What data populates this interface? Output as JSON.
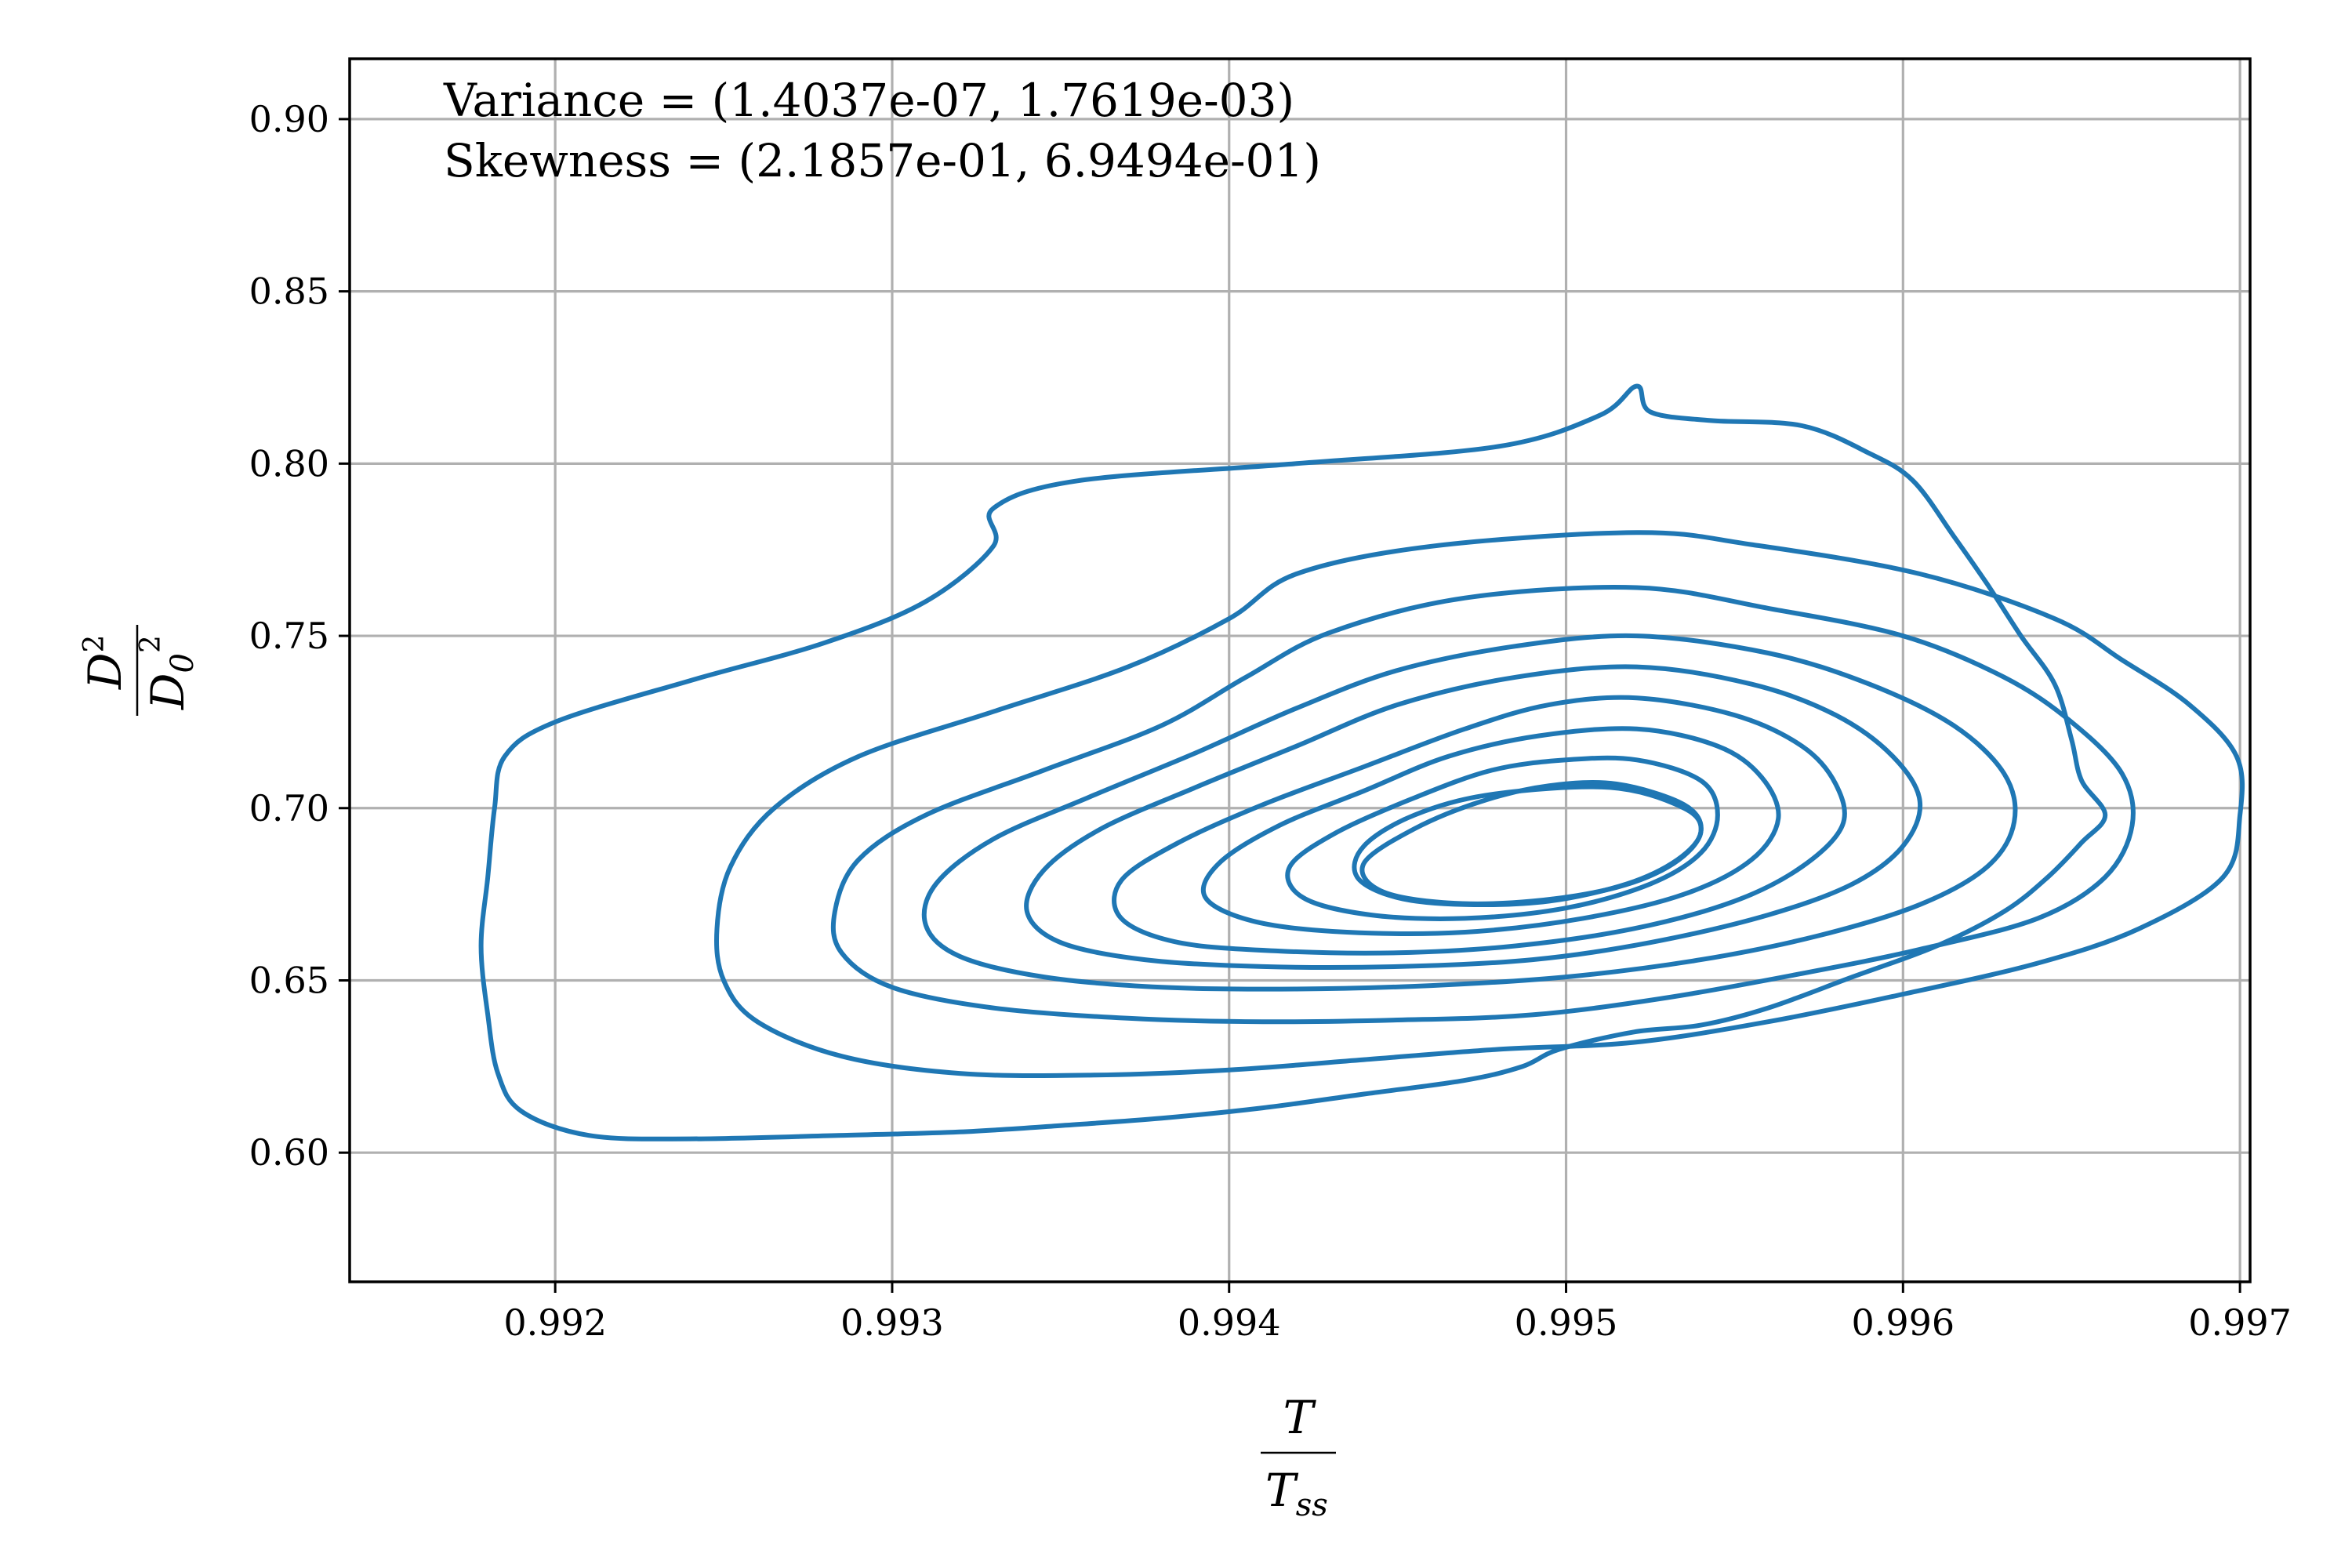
{
  "chart_data": {
    "type": "contour",
    "title": "",
    "xlabel": {
      "numerator": "T",
      "denominator": "T",
      "denominator_sub": "ss"
    },
    "ylabel": {
      "numerator": "D",
      "numerator_sup": "2",
      "denominator": "D",
      "denominator_sub": "0",
      "denominator_sup": "2"
    },
    "xlim": [
      0.99139,
      0.99703
    ],
    "ylim": [
      0.5625,
      0.9175
    ],
    "xticks": [
      "0.992",
      "0.993",
      "0.994",
      "0.995",
      "0.996",
      "0.997"
    ],
    "yticks": [
      "0.60",
      "0.65",
      "0.70",
      "0.75",
      "0.80",
      "0.85",
      "0.90"
    ],
    "grid": true,
    "line_color": "#1f77b4",
    "annotations": [
      "Variance = (1.4037e-07, 1.7619e-03)",
      "Skewness = (2.1857e-01, 6.9494e-01)"
    ],
    "contour_levels": [
      {
        "level": 1,
        "points": [
          [
            0.99521,
            0.8225
          ],
          [
            0.99525,
            0.815
          ],
          [
            0.99543,
            0.8125
          ],
          [
            0.9957,
            0.811
          ],
          [
            0.9959,
            0.803
          ],
          [
            0.99603,
            0.795
          ],
          [
            0.99615,
            0.779
          ],
          [
            0.99625,
            0.765
          ],
          [
            0.99635,
            0.75
          ],
          [
            0.99645,
            0.736
          ],
          [
            0.9965,
            0.72
          ],
          [
            0.99653,
            0.708
          ],
          [
            0.9966,
            0.698
          ],
          [
            0.99653,
            0.69
          ],
          [
            0.99643,
            0.68
          ],
          [
            0.9963,
            0.67
          ],
          [
            0.9961,
            0.66
          ],
          [
            0.99585,
            0.651
          ],
          [
            0.9956,
            0.642
          ],
          [
            0.9954,
            0.637
          ],
          [
            0.9952,
            0.635
          ],
          [
            0.99498,
            0.63
          ],
          [
            0.99487,
            0.625
          ],
          [
            0.9947,
            0.621
          ],
          [
            0.9944,
            0.617
          ],
          [
            0.9941,
            0.613
          ],
          [
            0.9938,
            0.61
          ],
          [
            0.99352,
            0.608
          ],
          [
            0.9932,
            0.606
          ],
          [
            0.99284,
            0.605
          ],
          [
            0.9924,
            0.604
          ],
          [
            0.9921,
            0.605
          ],
          [
            0.9919,
            0.612
          ],
          [
            0.99183,
            0.623
          ],
          [
            0.9918,
            0.64
          ],
          [
            0.99178,
            0.66
          ],
          [
            0.9918,
            0.68
          ],
          [
            0.99182,
            0.7
          ],
          [
            0.99185,
            0.715
          ],
          [
            0.992,
            0.725
          ],
          [
            0.9924,
            0.737
          ],
          [
            0.9928,
            0.748
          ],
          [
            0.9931,
            0.76
          ],
          [
            0.9933,
            0.776
          ],
          [
            0.9933,
            0.787
          ],
          [
            0.99355,
            0.795
          ],
          [
            0.9942,
            0.8
          ],
          [
            0.9948,
            0.805
          ],
          [
            0.9951,
            0.814
          ],
          [
            0.99521,
            0.8225
          ]
        ]
      },
      {
        "level": 2,
        "points": [
          [
            0.99521,
            0.78
          ],
          [
            0.99555,
            0.7765
          ],
          [
            0.99605,
            0.768
          ],
          [
            0.99645,
            0.755
          ],
          [
            0.99665,
            0.743
          ],
          [
            0.99685,
            0.73
          ],
          [
            0.99699,
            0.715
          ],
          [
            0.997,
            0.698
          ],
          [
            0.99695,
            0.68
          ],
          [
            0.9967,
            0.665
          ],
          [
            0.9964,
            0.655
          ],
          [
            0.996,
            0.646
          ],
          [
            0.9956,
            0.638
          ],
          [
            0.9952,
            0.632
          ],
          [
            0.9948,
            0.63
          ],
          [
            0.9944,
            0.627
          ],
          [
            0.994,
            0.624
          ],
          [
            0.9936,
            0.6225
          ],
          [
            0.9932,
            0.623
          ],
          [
            0.99285,
            0.628
          ],
          [
            0.9926,
            0.638
          ],
          [
            0.9925,
            0.65
          ],
          [
            0.99248,
            0.665
          ],
          [
            0.99252,
            0.683
          ],
          [
            0.99265,
            0.7
          ],
          [
            0.9929,
            0.715
          ],
          [
            0.9933,
            0.728
          ],
          [
            0.9937,
            0.741
          ],
          [
            0.994,
            0.755
          ],
          [
            0.9942,
            0.768
          ],
          [
            0.9946,
            0.776
          ],
          [
            0.99521,
            0.78
          ]
        ]
      },
      {
        "level": 3,
        "points": [
          [
            0.99521,
            0.764
          ],
          [
            0.9956,
            0.758
          ],
          [
            0.996,
            0.75
          ],
          [
            0.9963,
            0.738
          ],
          [
            0.9965,
            0.725
          ],
          [
            0.99665,
            0.71
          ],
          [
            0.99668,
            0.695
          ],
          [
            0.9966,
            0.68
          ],
          [
            0.9964,
            0.668
          ],
          [
            0.99605,
            0.659
          ],
          [
            0.9957,
            0.652
          ],
          [
            0.9953,
            0.645
          ],
          [
            0.9949,
            0.64
          ],
          [
            0.9945,
            0.6385
          ],
          [
            0.9941,
            0.638
          ],
          [
            0.9937,
            0.639
          ],
          [
            0.9933,
            0.642
          ],
          [
            0.993,
            0.648
          ],
          [
            0.99285,
            0.658
          ],
          [
            0.99283,
            0.67
          ],
          [
            0.9929,
            0.685
          ],
          [
            0.9931,
            0.698
          ],
          [
            0.99345,
            0.711
          ],
          [
            0.9938,
            0.724
          ],
          [
            0.99405,
            0.738
          ],
          [
            0.9943,
            0.751
          ],
          [
            0.9947,
            0.761
          ],
          [
            0.99521,
            0.764
          ]
        ]
      },
      {
        "level": 4,
        "points": [
          [
            0.99521,
            0.75
          ],
          [
            0.9956,
            0.745
          ],
          [
            0.9959,
            0.736
          ],
          [
            0.99615,
            0.724
          ],
          [
            0.9963,
            0.71
          ],
          [
            0.99633,
            0.696
          ],
          [
            0.99625,
            0.683
          ],
          [
            0.99605,
            0.672
          ],
          [
            0.99575,
            0.663
          ],
          [
            0.9954,
            0.656
          ],
          [
            0.995,
            0.651
          ],
          [
            0.9946,
            0.6485
          ],
          [
            0.9942,
            0.6475
          ],
          [
            0.9938,
            0.648
          ],
          [
            0.99345,
            0.651
          ],
          [
            0.9932,
            0.657
          ],
          [
            0.9931,
            0.666
          ],
          [
            0.99313,
            0.678
          ],
          [
            0.9933,
            0.691
          ],
          [
            0.99358,
            0.703
          ],
          [
            0.9939,
            0.716
          ],
          [
            0.9942,
            0.729
          ],
          [
            0.9945,
            0.74
          ],
          [
            0.99485,
            0.747
          ],
          [
            0.99521,
            0.75
          ]
        ]
      },
      {
        "level": 5,
        "points": [
          [
            0.99521,
            0.741
          ],
          [
            0.99555,
            0.736
          ],
          [
            0.9958,
            0.727
          ],
          [
            0.99597,
            0.715
          ],
          [
            0.99605,
            0.702
          ],
          [
            0.996,
            0.689
          ],
          [
            0.99585,
            0.678
          ],
          [
            0.9956,
            0.669
          ],
          [
            0.99525,
            0.661
          ],
          [
            0.9949,
            0.656
          ],
          [
            0.9945,
            0.654
          ],
          [
            0.9941,
            0.654
          ],
          [
            0.99375,
            0.656
          ],
          [
            0.9935,
            0.661
          ],
          [
            0.9934,
            0.67
          ],
          [
            0.99345,
            0.682
          ],
          [
            0.99362,
            0.694
          ],
          [
            0.9939,
            0.706
          ],
          [
            0.9942,
            0.718
          ],
          [
            0.9945,
            0.73
          ],
          [
            0.99485,
            0.738
          ],
          [
            0.99521,
            0.741
          ]
        ]
      },
      {
        "level": 6,
        "points": [
          [
            0.99521,
            0.732
          ],
          [
            0.9955,
            0.727
          ],
          [
            0.9957,
            0.718
          ],
          [
            0.9958,
            0.707
          ],
          [
            0.99582,
            0.695
          ],
          [
            0.9957,
            0.683
          ],
          [
            0.9955,
            0.673
          ],
          [
            0.9952,
            0.665
          ],
          [
            0.99485,
            0.66
          ],
          [
            0.9945,
            0.658
          ],
          [
            0.99415,
            0.6585
          ],
          [
            0.99385,
            0.661
          ],
          [
            0.99368,
            0.668
          ],
          [
            0.99368,
            0.679
          ],
          [
            0.99385,
            0.69
          ],
          [
            0.9941,
            0.701
          ],
          [
            0.9944,
            0.712
          ],
          [
            0.9947,
            0.723
          ],
          [
            0.99495,
            0.73
          ],
          [
            0.99521,
            0.732
          ]
        ]
      },
      {
        "level": 7,
        "points": [
          [
            0.99521,
            0.723
          ],
          [
            0.99545,
            0.718
          ],
          [
            0.99558,
            0.709
          ],
          [
            0.99563,
            0.697
          ],
          [
            0.99555,
            0.685
          ],
          [
            0.99535,
            0.675
          ],
          [
            0.99505,
            0.668
          ],
          [
            0.9947,
            0.664
          ],
          [
            0.99435,
            0.664
          ],
          [
            0.99408,
            0.667
          ],
          [
            0.99393,
            0.674
          ],
          [
            0.99397,
            0.684
          ],
          [
            0.99415,
            0.695
          ],
          [
            0.9944,
            0.705
          ],
          [
            0.99465,
            0.715
          ],
          [
            0.99492,
            0.721
          ],
          [
            0.99521,
            0.723
          ]
        ]
      },
      {
        "level": 8,
        "points": [
          [
            0.99521,
            0.714
          ],
          [
            0.9954,
            0.708
          ],
          [
            0.99545,
            0.698
          ],
          [
            0.9954,
            0.687
          ],
          [
            0.99525,
            0.678
          ],
          [
            0.995,
            0.671
          ],
          [
            0.9947,
            0.668
          ],
          [
            0.99442,
            0.669
          ],
          [
            0.99422,
            0.674
          ],
          [
            0.99418,
            0.683
          ],
          [
            0.99432,
            0.693
          ],
          [
            0.99455,
            0.703
          ],
          [
            0.99478,
            0.711
          ],
          [
            0.995,
            0.714
          ],
          [
            0.99521,
            0.714
          ]
        ]
      },
      {
        "level": 9,
        "points": [
          [
            0.99515,
            0.707
          ],
          [
            0.99535,
            0.701
          ],
          [
            0.9954,
            0.693
          ],
          [
            0.99532,
            0.684
          ],
          [
            0.99515,
            0.677
          ],
          [
            0.9949,
            0.673
          ],
          [
            0.99465,
            0.6725
          ],
          [
            0.99445,
            0.676
          ],
          [
            0.9944,
            0.684
          ],
          [
            0.99455,
            0.694
          ],
          [
            0.99475,
            0.702
          ],
          [
            0.99495,
            0.7065
          ],
          [
            0.99515,
            0.707
          ]
        ]
      },
      {
        "level": 10,
        "points": [
          [
            0.99513,
            0.706
          ],
          [
            0.99535,
            0.7
          ],
          [
            0.9954,
            0.693
          ],
          [
            0.99533,
            0.685
          ],
          [
            0.99518,
            0.678
          ],
          [
            0.99495,
            0.673
          ],
          [
            0.9947,
            0.672
          ],
          [
            0.9945,
            0.674
          ],
          [
            0.99438,
            0.68
          ],
          [
            0.9944,
            0.689
          ],
          [
            0.99455,
            0.698
          ],
          [
            0.99478,
            0.704
          ],
          [
            0.99513,
            0.706
          ]
        ]
      }
    ]
  }
}
